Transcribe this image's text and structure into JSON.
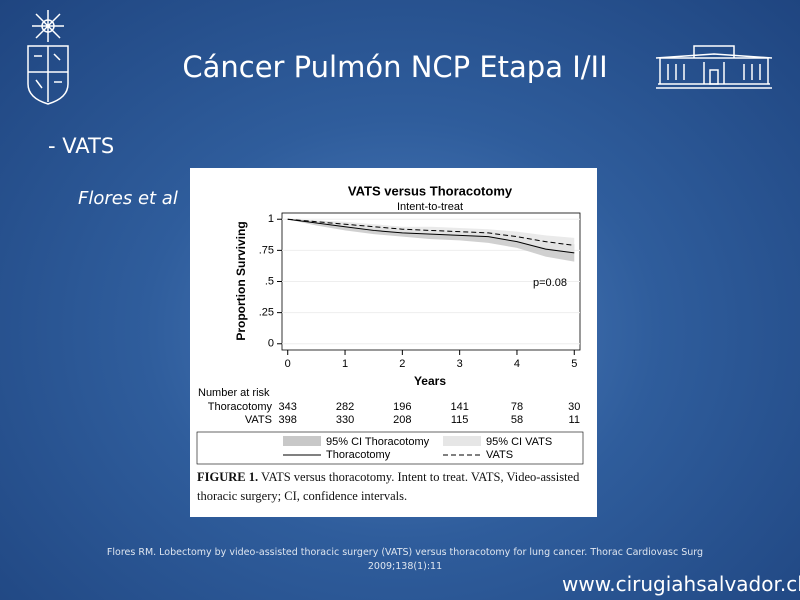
{
  "slide": {
    "title": "Cáncer Pulmón  NCP Etapa I/II",
    "bullet": "- VATS",
    "author": "Flores et al",
    "reference": "Flores RM. Lobectomy by video-assisted thoracic surgery (VATS) versus thoracotomy for lung cancer. Thorac Cardiovasc Surg 2009;138(1):11",
    "website": "www.cirugiahsalvador.cl"
  },
  "chart_data": {
    "type": "line",
    "title": "VATS versus Thoracotomy",
    "subtitle": "Intent-to-treat",
    "x_label": "Years",
    "y_label": "Proportion Surviving",
    "annotation": "p=0.08",
    "x": [
      0,
      0.5,
      1,
      1.5,
      2,
      2.5,
      3,
      3.5,
      4,
      4.5,
      5
    ],
    "xlim": [
      -0.1,
      5.1
    ],
    "xticks": [
      0,
      1,
      2,
      3,
      4,
      5
    ],
    "ylim": [
      -0.05,
      1.05
    ],
    "yticks": [
      1,
      {
        "value": 0.75,
        "label": ".75"
      },
      {
        "value": 0.5,
        "label": ".5"
      },
      {
        "value": 0.25,
        "label": ".25"
      },
      0
    ],
    "series": [
      {
        "name": "Thoracotomy",
        "color": "#000000",
        "dash": false,
        "values": [
          1,
          0.97,
          0.94,
          0.91,
          0.89,
          0.88,
          0.87,
          0.86,
          0.82,
          0.76,
          0.73
        ]
      },
      {
        "name": "VATS",
        "color": "#000000",
        "dash": true,
        "values": [
          1,
          0.98,
          0.96,
          0.94,
          0.92,
          0.91,
          0.9,
          0.89,
          0.86,
          0.82,
          0.79
        ]
      }
    ],
    "bands": [
      {
        "name": "95% CI Thoracotomy",
        "color": "#c8c8c8",
        "lower": [
          1,
          0.95,
          0.91,
          0.88,
          0.86,
          0.84,
          0.83,
          0.81,
          0.77,
          0.7,
          0.66
        ],
        "upper": [
          1,
          0.99,
          0.97,
          0.94,
          0.92,
          0.91,
          0.9,
          0.9,
          0.87,
          0.82,
          0.8
        ]
      },
      {
        "name": "95% CI VATS",
        "color": "#e6e6e6",
        "lower": [
          1,
          0.96,
          0.94,
          0.92,
          0.89,
          0.88,
          0.87,
          0.86,
          0.82,
          0.77,
          0.73
        ],
        "upper": [
          1,
          0.99,
          0.98,
          0.96,
          0.94,
          0.94,
          0.93,
          0.92,
          0.9,
          0.87,
          0.85
        ]
      }
    ],
    "risk_table": {
      "title": "Number at risk",
      "rows": [
        {
          "name": "Thoracotomy",
          "values": [
            343,
            282,
            196,
            141,
            78,
            30
          ]
        },
        {
          "name": "VATS",
          "values": [
            398,
            330,
            208,
            115,
            58,
            11
          ]
        }
      ]
    },
    "caption_label": "FIGURE 1.",
    "caption": "VATS versus thoracotomy. Intent to treat. VATS, Video-assisted thoracic surgery; CI, confidence intervals."
  }
}
